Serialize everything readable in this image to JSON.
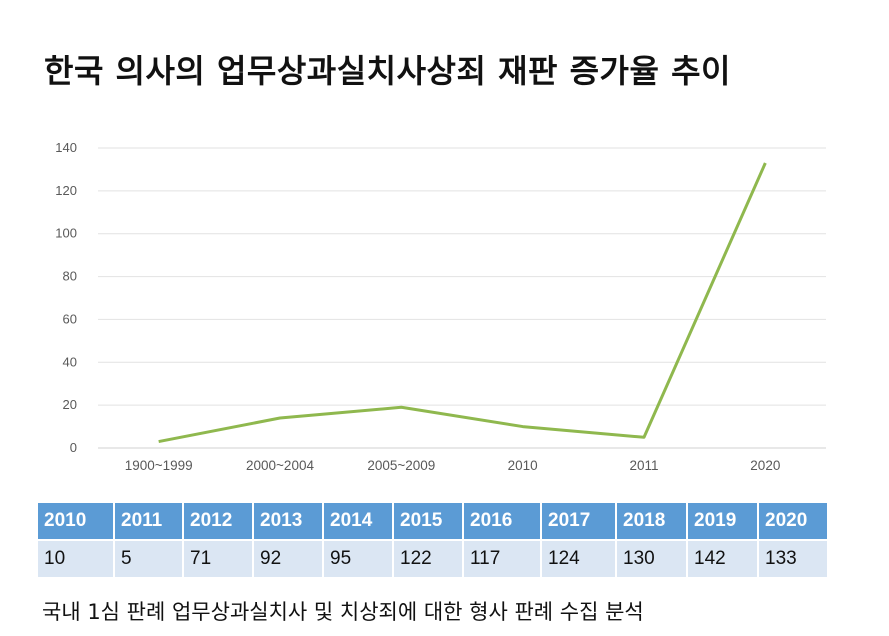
{
  "title": "한국 의사의 업무상과실치사상죄 재판 증가율 추이",
  "chart_data": {
    "type": "line",
    "categories": [
      "1900~1999",
      "2000~2004",
      "2005~2009",
      "2010",
      "2011",
      "2020"
    ],
    "series": [
      {
        "values": [
          3,
          14,
          19,
          10,
          5,
          133
        ],
        "color": "#8fb84e"
      }
    ],
    "ylim": [
      0,
      140
    ],
    "yticks": [
      0,
      20,
      40,
      60,
      80,
      100,
      120,
      140
    ],
    "grid": true,
    "title": "",
    "xlabel": "",
    "ylabel": ""
  },
  "table": {
    "years": [
      "2010",
      "2011",
      "2012",
      "2013",
      "2014",
      "2015",
      "2016",
      "2017",
      "2018",
      "2019",
      "2020"
    ],
    "counts": [
      "10",
      "5",
      "71",
      "92",
      "95",
      "122",
      "117",
      "124",
      "130",
      "142",
      "133"
    ],
    "header_color": "#5b9bd5",
    "row_color": "#dbe6f3"
  },
  "source": "국내 1심 판례 업무상과실치사 및 치상죄에 대한 형사 판례 수집 분석"
}
